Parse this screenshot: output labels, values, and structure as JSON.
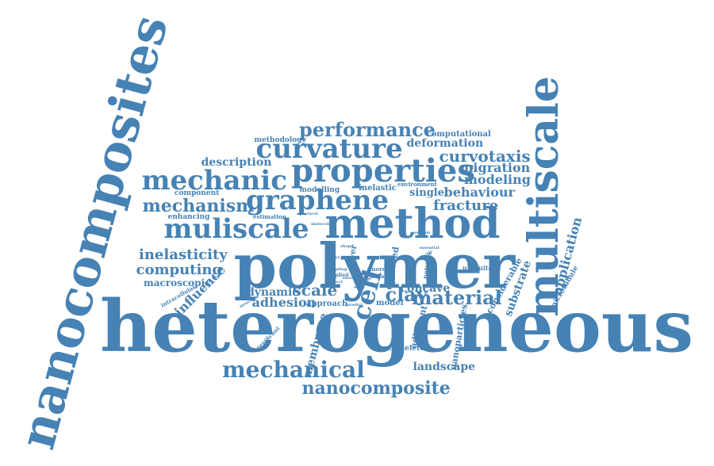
{
  "palette": {
    "word_color": "#4682b4",
    "background": "#ffffff"
  },
  "words": [
    "heterogeneous",
    "nanocomposites",
    "polymer",
    "method",
    "multiscale",
    "properties",
    "curvature",
    "performance",
    "mechanic",
    "graphene",
    "muliscale",
    "mechanism",
    "mechanical",
    "nanocomposite",
    "material",
    "cell",
    "inelasticity",
    "computing",
    "macroscopic",
    "influence",
    "adhesion",
    "scale",
    "clay",
    "concave",
    "fracture",
    "behaviour",
    "single",
    "modeling",
    "migration",
    "curvotaxis",
    "deformation",
    "computational",
    "application",
    "substrate",
    "considerable",
    "microtubule",
    "membrane",
    "landscape",
    "cytoskeleton",
    "nanoparticles",
    "adherent",
    "description",
    "component",
    "methodology",
    "enhancing",
    "estimation",
    "modelling",
    "inelastic",
    "environment",
    "dynamic",
    "approach",
    "model",
    "observed",
    "network",
    "ubiquitous",
    "cellular",
    "intracellular",
    "structure",
    "significant",
    "layer",
    "molecular",
    "applied",
    "direct",
    "physical",
    "essential",
    "multiple",
    "more",
    "coupling",
    "amount",
    "scientific",
    "predict",
    "phys",
    "shape"
  ]
}
